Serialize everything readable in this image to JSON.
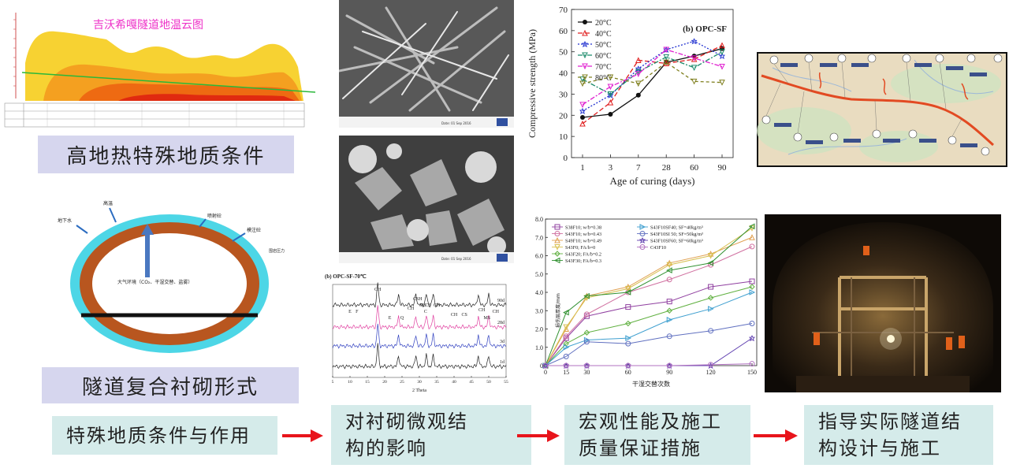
{
  "heat_map": {
    "title": "吉沃希嘎隧道地温云图"
  },
  "labels": {
    "geology": "高地热特殊地质条件",
    "lining": "隧道复合衬砌形式"
  },
  "lining_diagram": {
    "groundwater": "地下水",
    "high_temp": "高温",
    "sprayed_concrete": "喷射砼",
    "secondary_lining": "模注砼",
    "surrounding_pressure": "围岩压力",
    "atmosphere": "大气环境（CO₂、干湿交替、盐雾）"
  },
  "flow": {
    "step1": "特殊地质条件与作用",
    "step2_line1": "对衬砌微观结",
    "step2_line2": "构的影响",
    "step3_line1": "宏观性能及施工",
    "step3_line2": "质量保证措施",
    "step4_line1": "指导实际隧道结",
    "step4_line2": "构设计与施工"
  },
  "xrd": {
    "title": "(b) OPC-SF-70℃",
    "xlabel": "2 Theta",
    "peaks": [
      "CH",
      "E",
      "F",
      "E",
      "Q",
      "CH",
      "CSH",
      "MS",
      "CS",
      "C",
      "CH",
      "CH",
      "CS",
      "CH",
      "MS",
      "CH"
    ],
    "curve_labels": [
      "90d",
      "28d",
      "3d",
      "1d"
    ],
    "ticks": [
      "5",
      "10",
      "15",
      "20",
      "25",
      "30",
      "35",
      "40",
      "45",
      "50",
      "55"
    ]
  },
  "sem": {
    "caption_top": "Date: 01 Sep 2016",
    "caption_bottom": "Date: 01 Sep 2016"
  },
  "colors": {
    "accent_arrow": "#e8141b",
    "purple_box": "#d6d6ee",
    "teal_box": "#d5ebea",
    "lining_outer": "#4dd6e6",
    "lining_inner": "#b8561f"
  },
  "chart_data": [
    {
      "type": "line",
      "title": "(b) OPC-SF",
      "xlabel": "Age of curing (days)",
      "ylabel": "Compressive strength (MPa)",
      "categories": [
        "1",
        "3",
        "7",
        "28",
        "60",
        "90"
      ],
      "ylim": [
        0,
        70
      ],
      "yticks": [
        "0",
        "10",
        "20",
        "30",
        "40",
        "50",
        "60",
        "70"
      ],
      "legend_position": "top-left",
      "series": [
        {
          "name": "20°C",
          "color": "#111111",
          "values": [
            19,
            20.5,
            29.5,
            45,
            48,
            51.5
          ]
        },
        {
          "name": "40°C",
          "color": "#e02020",
          "values": [
            16,
            26,
            46,
            44.5,
            46.5,
            53
          ]
        },
        {
          "name": "50°C",
          "color": "#2030d0",
          "values": [
            22,
            29.5,
            42,
            51,
            55,
            48
          ]
        },
        {
          "name": "60°C",
          "color": "#1a8a6a",
          "values": [
            37,
            30,
            40.5,
            47.5,
            42.5,
            50
          ]
        },
        {
          "name": "70°C",
          "color": "#e020d0",
          "values": [
            25,
            33.5,
            39.5,
            51,
            47,
            43
          ]
        },
        {
          "name": "80°C",
          "color": "#808020",
          "values": [
            35,
            38,
            35,
            45,
            36,
            35.5
          ]
        }
      ]
    },
    {
      "type": "line",
      "title": "",
      "xlabel": "干湿交替次数",
      "ylabel": "损伤层厚度/mm",
      "categories": [
        "0",
        "15",
        "30",
        "60",
        "90",
        "120",
        "150"
      ],
      "ylim": [
        0,
        8
      ],
      "yticks": [
        "0",
        "1.0",
        "2.0",
        "3.0",
        "4.0",
        "5.0",
        "6.0",
        "7.0",
        "8.0"
      ],
      "legend_position": "top-left",
      "series": [
        {
          "name": "S38F10; w/b=0.38",
          "color": "#9040a0",
          "values": [
            0,
            1.5,
            2.7,
            3.2,
            3.5,
            4.3,
            4.6
          ]
        },
        {
          "name": "S43F10; w/b=0.43",
          "color": "#d070a0",
          "values": [
            0,
            1.6,
            2.8,
            4.0,
            4.7,
            5.5,
            6.5
          ]
        },
        {
          "name": "S49F10; w/b=0.49",
          "color": "#e0a050",
          "values": [
            0,
            2.0,
            3.8,
            4.3,
            5.6,
            6.1,
            7.0
          ]
        },
        {
          "name": "S43F0; FA/b=0",
          "color": "#d8c050",
          "values": [
            0,
            2.1,
            3.7,
            4.2,
            5.5,
            6.0,
            7.5
          ]
        },
        {
          "name": "S43F20; FA/b=0.2",
          "color": "#60b040",
          "values": [
            0,
            1.2,
            1.8,
            2.3,
            3.0,
            3.7,
            4.3
          ]
        },
        {
          "name": "S43F30; FA/b=0.3",
          "color": "#309030",
          "values": [
            0,
            2.9,
            3.8,
            4.0,
            5.2,
            5.6,
            7.6
          ]
        },
        {
          "name": "S43F10SF40; SF=40kg/m³",
          "color": "#40a0d0",
          "values": [
            0,
            1.0,
            1.4,
            1.5,
            2.5,
            3.1,
            4.0
          ]
        },
        {
          "name": "S43F10SI 50; SF=50kg/m³",
          "color": "#6070c0",
          "values": [
            0,
            0.5,
            1.3,
            1.2,
            1.6,
            1.9,
            2.3
          ]
        },
        {
          "name": "S43F10SF60; SF=60kg/m³",
          "color": "#6040b0",
          "values": [
            0,
            0,
            0,
            0,
            0,
            0,
            1.5
          ]
        },
        {
          "name": "C43F10",
          "color": "#b070c0",
          "values": [
            0,
            0,
            0,
            0,
            0,
            0.05,
            0.1
          ]
        }
      ]
    }
  ]
}
